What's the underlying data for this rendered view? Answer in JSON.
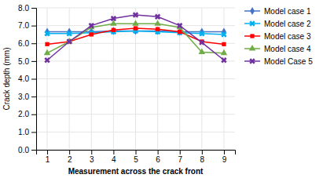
{
  "chart_data": {
    "type": "line",
    "xlabel": "Measurement across the crack front",
    "ylabel": "Crack depth (mm)",
    "x": [
      1,
      2,
      3,
      4,
      5,
      6,
      7,
      8,
      9
    ],
    "series": [
      {
        "name": "Model case 1",
        "color": "#4472C4",
        "marker": "diamond",
        "values": [
          6.65,
          6.65,
          6.65,
          6.7,
          6.7,
          6.7,
          6.65,
          6.65,
          6.65
        ]
      },
      {
        "name": "Model case 2",
        "color": "#00B0F0",
        "marker": "x",
        "values": [
          6.55,
          6.55,
          6.6,
          6.65,
          6.7,
          6.65,
          6.6,
          6.55,
          6.5
        ]
      },
      {
        "name": "Model case 3",
        "color": "#FF0000",
        "marker": "square",
        "values": [
          5.95,
          6.1,
          6.5,
          6.75,
          6.85,
          6.8,
          6.65,
          6.1,
          5.95
        ]
      },
      {
        "name": "Model case 4",
        "color": "#70AD47",
        "marker": "triangle",
        "values": [
          5.45,
          6.1,
          6.9,
          7.1,
          7.1,
          7.1,
          6.9,
          5.5,
          5.45
        ]
      },
      {
        "name": "Model Case 5",
        "color": "#7030A0",
        "marker": "x",
        "values": [
          5.05,
          6.1,
          7.0,
          7.4,
          7.6,
          7.5,
          7.0,
          6.05,
          5.05
        ]
      }
    ],
    "xlim": [
      0.5,
      9.5
    ],
    "xticks": [
      1,
      2,
      3,
      4,
      5,
      6,
      7,
      8,
      9
    ],
    "ylim": [
      0,
      8
    ],
    "yticks": [
      {
        "value": 0,
        "label": "0.0"
      },
      {
        "value": 1,
        "label": "1.0"
      },
      {
        "value": 2,
        "label": "2.0"
      },
      {
        "value": 3,
        "label": "3.0"
      },
      {
        "value": 4,
        "label": "4.0"
      },
      {
        "value": 5,
        "label": "5.0"
      },
      {
        "value": 6,
        "label": "6.0"
      },
      {
        "value": 7,
        "label": "7.0"
      },
      {
        "value": 8,
        "label": "8.0"
      }
    ],
    "grid": true,
    "legend": "right"
  }
}
